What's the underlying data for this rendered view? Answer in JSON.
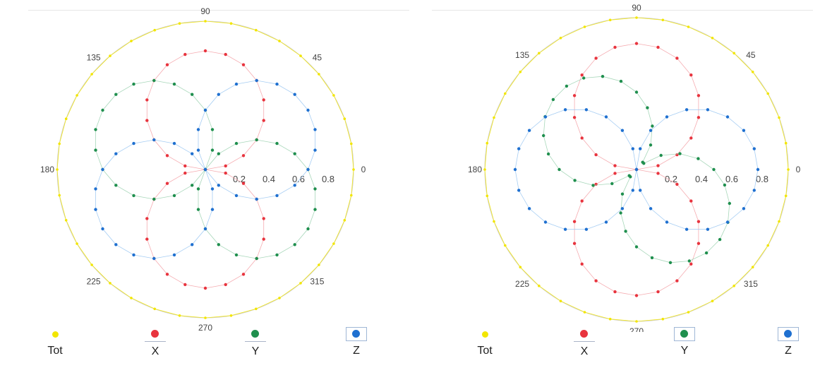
{
  "colors": {
    "Tot": "#f2e600",
    "X": "#e8343e",
    "Y": "#1f8f4e",
    "Z": "#1f70d0",
    "xline": "#f4a3a8",
    "yline": "#9fd3b3",
    "zline": "#9cc8f2",
    "grid": "#cfcfcf",
    "text": "#444444"
  },
  "chart_data": [
    {
      "type": "polar-scatter",
      "angular_ticks": [
        "0",
        "45",
        "90",
        "135",
        "180",
        "225",
        "270",
        "315"
      ],
      "radial_ticks": [
        "0.2",
        "0.4",
        "0.6",
        "0.8"
      ],
      "rlim": [
        0,
        1
      ],
      "legend": {
        "placement": "bottom",
        "items": [
          "Tot",
          "X",
          "Y",
          "Z"
        ]
      },
      "series": [
        {
          "name": "Tot",
          "model": "constant",
          "r": 1.0,
          "phase_deg": 0
        },
        {
          "name": "X",
          "model": "abs_sin",
          "r": 0.8,
          "phase_deg": 0
        },
        {
          "name": "Y",
          "model": "abs_sin",
          "r": 0.8,
          "phase_deg": 60
        },
        {
          "name": "Z",
          "model": "abs_sin",
          "r": 0.8,
          "phase_deg": 120
        }
      ]
    },
    {
      "type": "polar-scatter",
      "angular_ticks": [
        "0",
        "45",
        "90",
        "135",
        "180",
        "225",
        "270",
        "315"
      ],
      "radial_ticks": [
        "0.2",
        "0.4",
        "0.6",
        "0.8"
      ],
      "rlim": [
        0,
        1
      ],
      "legend": {
        "placement": "bottom",
        "items": [
          "Tot",
          "X",
          "Y",
          "Z"
        ]
      },
      "series": [
        {
          "name": "Tot",
          "model": "constant",
          "r": 1.0,
          "phase_deg": 0
        },
        {
          "name": "X",
          "model": "abs_sin",
          "r": 0.83,
          "phase_deg": 0
        },
        {
          "name": "Y",
          "model": "abs_sin",
          "r": 0.72,
          "phase_deg": 45
        },
        {
          "name": "Z",
          "model": "abs_cos",
          "r": 0.8,
          "phase_deg": 0
        }
      ]
    }
  ]
}
